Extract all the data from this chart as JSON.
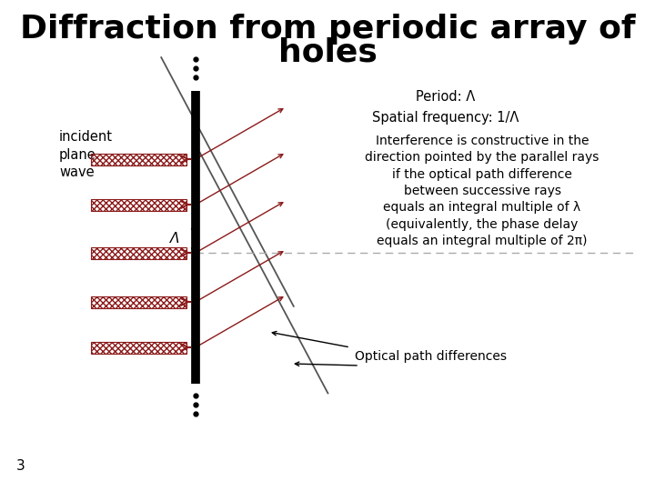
{
  "title_line1": "Diffraction from periodic array of",
  "title_line2": "holes",
  "bg_color": "#ffffff",
  "text_color": "#000000",
  "arrow_color": "#8b1a1a",
  "line_color": "#555555",
  "grating_color": "#000000",
  "dashed_color": "#aaaaaa",
  "label_incident": "incident\nplane\nwave",
  "label_period": "Period: Λ\nSpatial frequency: 1/Λ",
  "label_interference": "Interference is constructive in the\ndirection pointed by the parallel rays\nif the optical path difference\nbetween successive rays\nequals an integral multiple of λ\n(equivalently, the phase delay\nequals an integral multiple of 2π)",
  "label_optical": "Optical path differences",
  "label_lambda": "Λ",
  "label_page": "3",
  "title_fontsize": 26,
  "body_fontsize": 10.5,
  "small_fontsize": 10
}
